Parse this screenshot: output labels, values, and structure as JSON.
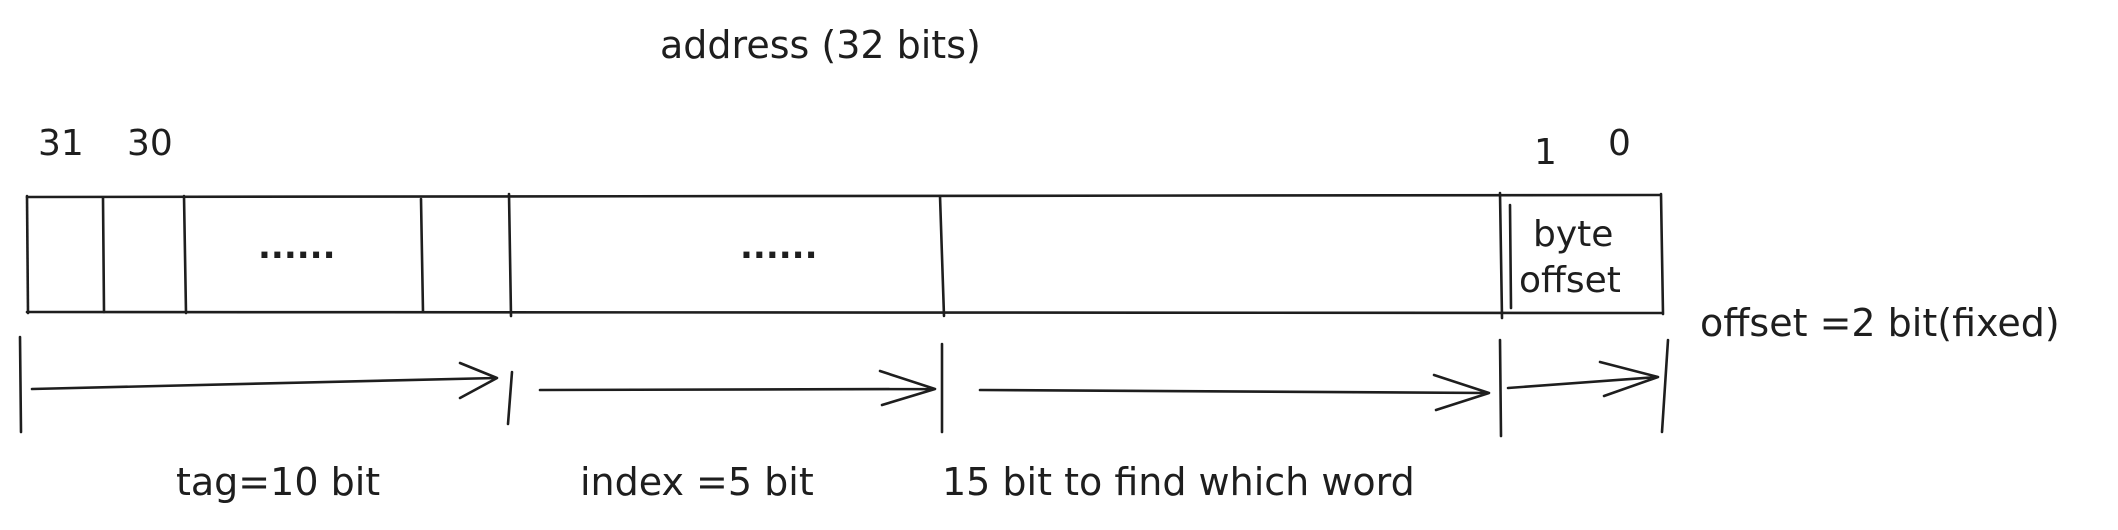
{
  "title": "address (32 bits)",
  "bit_numbers": {
    "b31": "31",
    "b30": "30",
    "b1": "1",
    "b0": "0"
  },
  "cells": {
    "dots_left": "......",
    "dots_middle": "......",
    "byte_offset_line1": "byte",
    "byte_offset_line2": "offset"
  },
  "side_note": "offset =2 bit(fixed)",
  "field_labels": {
    "tag": "tag=10 bit",
    "index": "index =5 bit",
    "word": "15 bit to find which word"
  }
}
